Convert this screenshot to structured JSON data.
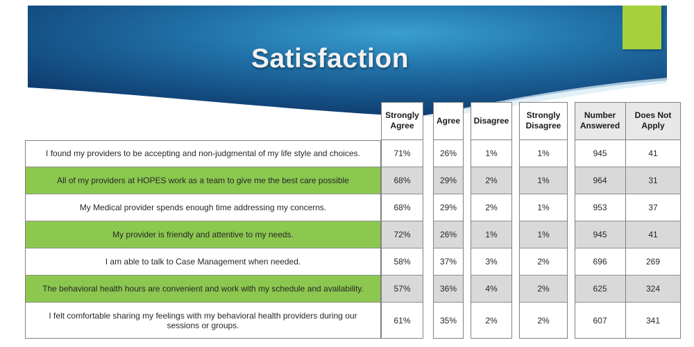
{
  "title": "Satisfaction",
  "colors": {
    "banner_dark": "#0f3c6e",
    "banner_light": "#2c8dbf",
    "accent_green": "#a6d13c",
    "row_green": "#8cc850",
    "row_gray": "#d9d9d9"
  },
  "table": {
    "headers": {
      "strongly_agree": "Strongly Agree",
      "agree": "Agree",
      "disagree": "Disagree",
      "strongly_disagree": "Strongly Disagree",
      "number_answered": "Number Answered",
      "does_not_apply": "Does Not Apply"
    },
    "rows": [
      {
        "question": "I found my providers to be accepting and non-judgmental  of my life style and choices.",
        "strongly_agree": "71%",
        "agree": "26%",
        "disagree": "1%",
        "strongly_disagree": "1%",
        "number_answered": "945",
        "does_not_apply": "41"
      },
      {
        "question": "All of my providers at HOPES work as a team to give me the best care possible",
        "strongly_agree": "68%",
        "agree": "29%",
        "disagree": "2%",
        "strongly_disagree": "1%",
        "number_answered": "964",
        "does_not_apply": "31"
      },
      {
        "question": "My Medical provider spends enough time addressing my concerns.",
        "strongly_agree": "68%",
        "agree": "29%",
        "disagree": "2%",
        "strongly_disagree": "1%",
        "number_answered": "953",
        "does_not_apply": "37"
      },
      {
        "question": "My provider is friendly  and attentive to my needs.",
        "strongly_agree": "72%",
        "agree": "26%",
        "disagree": "1%",
        "strongly_disagree": "1%",
        "number_answered": "945",
        "does_not_apply": "41"
      },
      {
        "question": "I am able to talk to Case Management when needed.",
        "strongly_agree": "58%",
        "agree": "37%",
        "disagree": "3%",
        "strongly_disagree": "2%",
        "number_answered": "696",
        "does_not_apply": "269"
      },
      {
        "question": "The behavioral health hours are convenient  and work with my schedule and availability.",
        "strongly_agree": "57%",
        "agree": "36%",
        "disagree": "4%",
        "strongly_disagree": "2%",
        "number_answered": "625",
        "does_not_apply": "324"
      },
      {
        "question": "I felt comfortable sharing my feelings with my behavioral health providers during our sessions or groups.",
        "strongly_agree": "61%",
        "agree": "35%",
        "disagree": "2%",
        "strongly_disagree": "2%",
        "number_answered": "607",
        "does_not_apply": "341"
      }
    ]
  }
}
